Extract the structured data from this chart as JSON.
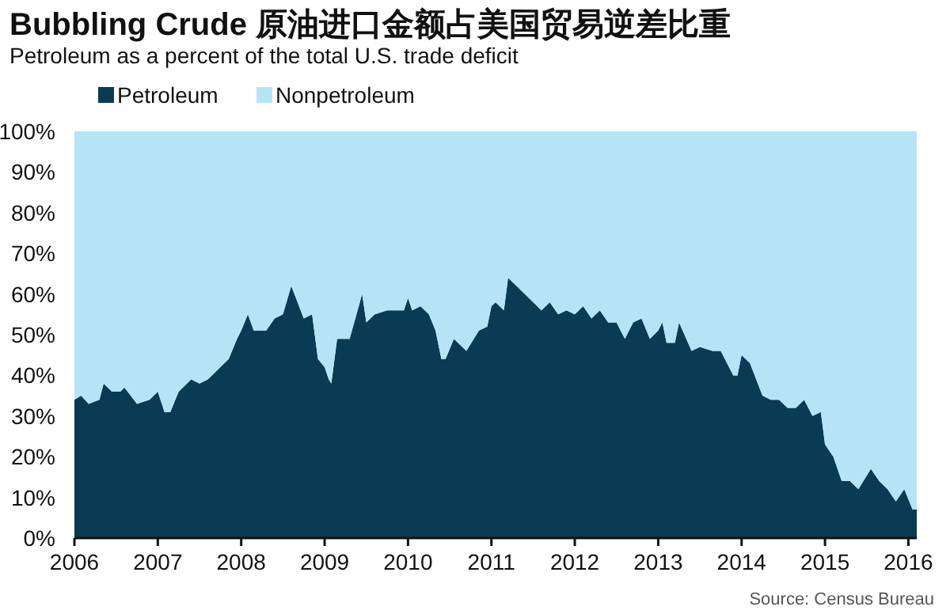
{
  "chart_data": {
    "type": "area",
    "title": "Bubbling Crude 原油进口金额占美国贸易逆差比重",
    "subtitle": "Petroleum as a percent of the total U.S. trade deficit",
    "annotations": [
      "Source: Census Bureau"
    ],
    "x": [
      2006.0,
      2006.08,
      2006.17,
      2006.3,
      2006.35,
      2006.45,
      2006.55,
      2006.6,
      2006.75,
      2006.9,
      2007.0,
      2007.08,
      2007.15,
      2007.25,
      2007.4,
      2007.5,
      2007.6,
      2007.75,
      2007.85,
      2007.95,
      2008.0,
      2008.08,
      2008.15,
      2008.3,
      2008.4,
      2008.5,
      2008.6,
      2008.75,
      2008.85,
      2008.92,
      2009.0,
      2009.05,
      2009.08,
      2009.15,
      2009.2,
      2009.3,
      2009.45,
      2009.5,
      2009.6,
      2009.75,
      2009.95,
      2010.0,
      2010.05,
      2010.15,
      2010.25,
      2010.33,
      2010.4,
      2010.45,
      2010.55,
      2010.7,
      2010.85,
      2010.95,
      2011.0,
      2011.05,
      2011.15,
      2011.2,
      2011.3,
      2011.45,
      2011.6,
      2011.7,
      2011.8,
      2011.9,
      2012.0,
      2012.1,
      2012.2,
      2012.3,
      2012.4,
      2012.5,
      2012.6,
      2012.7,
      2012.8,
      2012.9,
      2013.0,
      2013.05,
      2013.1,
      2013.2,
      2013.25,
      2013.4,
      2013.5,
      2013.65,
      2013.75,
      2013.9,
      2013.95,
      2014.0,
      2014.1,
      2014.25,
      2014.35,
      2014.45,
      2014.55,
      2014.65,
      2014.75,
      2014.85,
      2014.95,
      2015.0,
      2015.1,
      2015.2,
      2015.3,
      2015.4,
      2015.55,
      2015.65,
      2015.75,
      2015.85,
      2015.95,
      2016.05,
      2016.1
    ],
    "stacked": true,
    "series": [
      {
        "name": "Petroleum",
        "color": "#0a3b55",
        "values": [
          34,
          35,
          33,
          34,
          38,
          36,
          36,
          37,
          33,
          34,
          36,
          31,
          31,
          36,
          39,
          38,
          39,
          42,
          44,
          49,
          51,
          55,
          51,
          51,
          54,
          55,
          62,
          54,
          55,
          44,
          42,
          39,
          38,
          49,
          49,
          49,
          60,
          53,
          55,
          56,
          56,
          59,
          56,
          57,
          55,
          51,
          44,
          44,
          49,
          46,
          51,
          52,
          57,
          58,
          56,
          64,
          62,
          59,
          56,
          58,
          55,
          56,
          55,
          57,
          54,
          56,
          53,
          53,
          49,
          53,
          54,
          49,
          51,
          53,
          48,
          48,
          53,
          46,
          47,
          46,
          46,
          40,
          40,
          45,
          43,
          35,
          34,
          34,
          32,
          32,
          34,
          30,
          31,
          23,
          20,
          14,
          14,
          12,
          17,
          14,
          12,
          9,
          12,
          7,
          7
        ]
      },
      {
        "name": "Nonpetroleum",
        "color": "#b5e4f7",
        "values": [
          66,
          65,
          67,
          66,
          62,
          64,
          64,
          63,
          67,
          66,
          64,
          69,
          69,
          64,
          61,
          62,
          61,
          58,
          56,
          51,
          49,
          45,
          49,
          49,
          46,
          45,
          38,
          46,
          45,
          56,
          58,
          61,
          62,
          51,
          51,
          51,
          40,
          47,
          45,
          44,
          44,
          41,
          44,
          43,
          45,
          49,
          56,
          56,
          51,
          54,
          49,
          48,
          43,
          42,
          44,
          36,
          38,
          41,
          44,
          42,
          45,
          44,
          45,
          43,
          46,
          44,
          47,
          47,
          51,
          47,
          46,
          51,
          49,
          47,
          52,
          52,
          47,
          54,
          53,
          54,
          54,
          60,
          60,
          55,
          57,
          65,
          66,
          66,
          68,
          68,
          66,
          70,
          69,
          77,
          80,
          86,
          86,
          88,
          83,
          86,
          88,
          91,
          88,
          93,
          93
        ]
      }
    ],
    "xlim": [
      2006,
      2016.1
    ],
    "xticks": [
      2006,
      2007,
      2008,
      2009,
      2010,
      2011,
      2012,
      2013,
      2014,
      2015,
      2016
    ],
    "ylim": [
      0,
      100
    ],
    "yticks": [
      {
        "value": 0,
        "label": "0%"
      },
      {
        "value": 10,
        "label": "10%"
      },
      {
        "value": 20,
        "label": "20%"
      },
      {
        "value": 30,
        "label": "30%"
      },
      {
        "value": 40,
        "label": "40%"
      },
      {
        "value": 50,
        "label": "50%"
      },
      {
        "value": 60,
        "label": "60%"
      },
      {
        "value": 70,
        "label": "70%"
      },
      {
        "value": 80,
        "label": "80%"
      },
      {
        "value": 90,
        "label": "90%"
      },
      {
        "value": 100,
        "label": "100%"
      }
    ],
    "legend": "top left",
    "grid": false
  }
}
